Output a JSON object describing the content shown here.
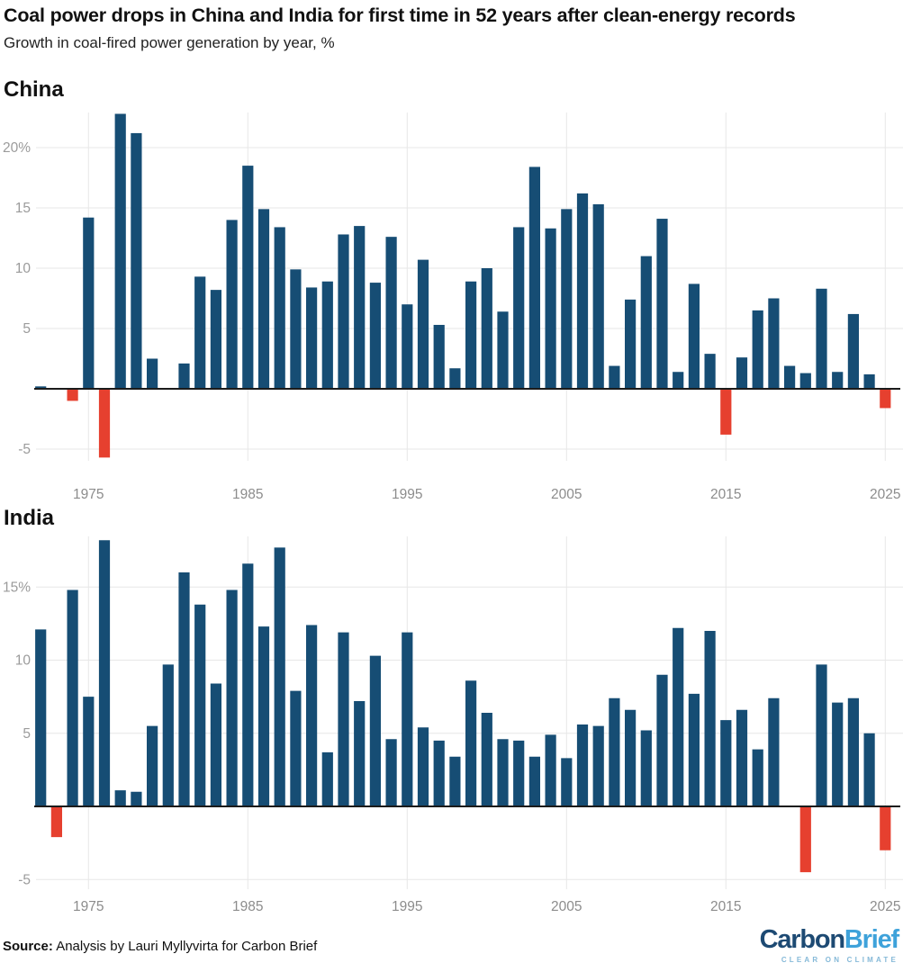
{
  "header": {
    "title": "Coal power drops in China and India for first time in 52 years after clean-energy records",
    "subtitle": "Growth in coal-fired power generation by year, %"
  },
  "footer": {
    "source_label": "Source:",
    "source_text": " Analysis by Lauri Myllyvirta for Carbon Brief",
    "logo_part1": "Carbon",
    "logo_part2": "Brief",
    "logo_tagline": "CLEAR ON CLIMATE"
  },
  "colors": {
    "positive_bar": "#164d74",
    "negative_bar": "#e6402f",
    "gridline": "#e7e7e7",
    "axis_line": "#1b1b1b",
    "y_tick_text": "#9b9b9b",
    "x_tick_text": "#8c8c8c"
  },
  "chart_data": [
    {
      "type": "bar",
      "title": "China",
      "ylabel": "Growth in coal-fired power generation, %",
      "x": [
        1972,
        1973,
        1974,
        1975,
        1976,
        1977,
        1978,
        1979,
        1980,
        1981,
        1982,
        1983,
        1984,
        1985,
        1986,
        1987,
        1988,
        1989,
        1990,
        1991,
        1992,
        1993,
        1994,
        1995,
        1996,
        1997,
        1998,
        1999,
        2000,
        2001,
        2002,
        2003,
        2004,
        2005,
        2006,
        2007,
        2008,
        2009,
        2010,
        2011,
        2012,
        2013,
        2014,
        2015,
        2016,
        2017,
        2018,
        2019,
        2020,
        2021,
        2022,
        2023,
        2024,
        2025
      ],
      "values": [
        0.2,
        0,
        -1.0,
        14.2,
        -5.7,
        22.8,
        21.2,
        2.5,
        0,
        2.1,
        9.3,
        8.2,
        14.0,
        18.5,
        14.9,
        13.4,
        9.9,
        8.4,
        8.9,
        12.8,
        13.5,
        8.8,
        12.6,
        7.0,
        10.7,
        5.3,
        1.7,
        8.9,
        10.0,
        6.4,
        13.4,
        18.4,
        13.3,
        14.9,
        16.2,
        15.3,
        1.9,
        7.4,
        11.0,
        14.1,
        1.4,
        8.7,
        2.9,
        -3.8,
        2.6,
        6.5,
        7.5,
        1.9,
        1.3,
        8.3,
        1.4,
        6.2,
        1.2,
        -1.6
      ],
      "x_ticks": [
        1975,
        1985,
        1995,
        2005,
        2015,
        2025
      ],
      "y_ticks": [
        {
          "v": 20,
          "label": "20%"
        },
        {
          "v": 15,
          "label": "15"
        },
        {
          "v": 10,
          "label": "10"
        },
        {
          "v": 5,
          "label": "5"
        },
        {
          "v": -5,
          "label": "-5"
        }
      ],
      "ylim": [
        -6.7,
        23.4
      ],
      "grid": true,
      "legend": null,
      "negative_color_meaning": "year-on-year decline"
    },
    {
      "type": "bar",
      "title": "India",
      "ylabel": "Growth in coal-fired power generation, %",
      "x": [
        1972,
        1973,
        1974,
        1975,
        1976,
        1977,
        1978,
        1979,
        1980,
        1981,
        1982,
        1983,
        1984,
        1985,
        1986,
        1987,
        1988,
        1989,
        1990,
        1991,
        1992,
        1993,
        1994,
        1995,
        1996,
        1997,
        1998,
        1999,
        2000,
        2001,
        2002,
        2003,
        2004,
        2005,
        2006,
        2007,
        2008,
        2009,
        2010,
        2011,
        2012,
        2013,
        2014,
        2015,
        2016,
        2017,
        2018,
        2019,
        2020,
        2021,
        2022,
        2023,
        2024,
        2025
      ],
      "values": [
        12.1,
        -2.1,
        14.8,
        7.5,
        18.2,
        1.1,
        1.0,
        5.5,
        9.7,
        16.0,
        13.8,
        8.4,
        14.8,
        16.6,
        12.3,
        17.7,
        7.9,
        12.4,
        3.7,
        11.9,
        7.2,
        10.3,
        4.6,
        11.9,
        5.4,
        4.5,
        3.4,
        8.6,
        6.4,
        4.6,
        4.5,
        3.4,
        4.9,
        3.3,
        5.6,
        5.5,
        7.4,
        6.6,
        5.2,
        9.0,
        12.2,
        7.7,
        12.0,
        5.9,
        6.6,
        3.9,
        7.4,
        0,
        -4.5,
        9.7,
        7.1,
        7.4,
        5.0,
        -3.0
      ],
      "x_ticks": [
        1975,
        1985,
        1995,
        2005,
        2015,
        2025
      ],
      "y_ticks": [
        {
          "v": 15,
          "label": "15%"
        },
        {
          "v": 10,
          "label": "10"
        },
        {
          "v": 5,
          "label": "5"
        },
        {
          "v": -5,
          "label": "-5"
        }
      ],
      "ylim": [
        -5.8,
        18.7
      ],
      "grid": true,
      "legend": null,
      "negative_color_meaning": "year-on-year decline"
    }
  ]
}
